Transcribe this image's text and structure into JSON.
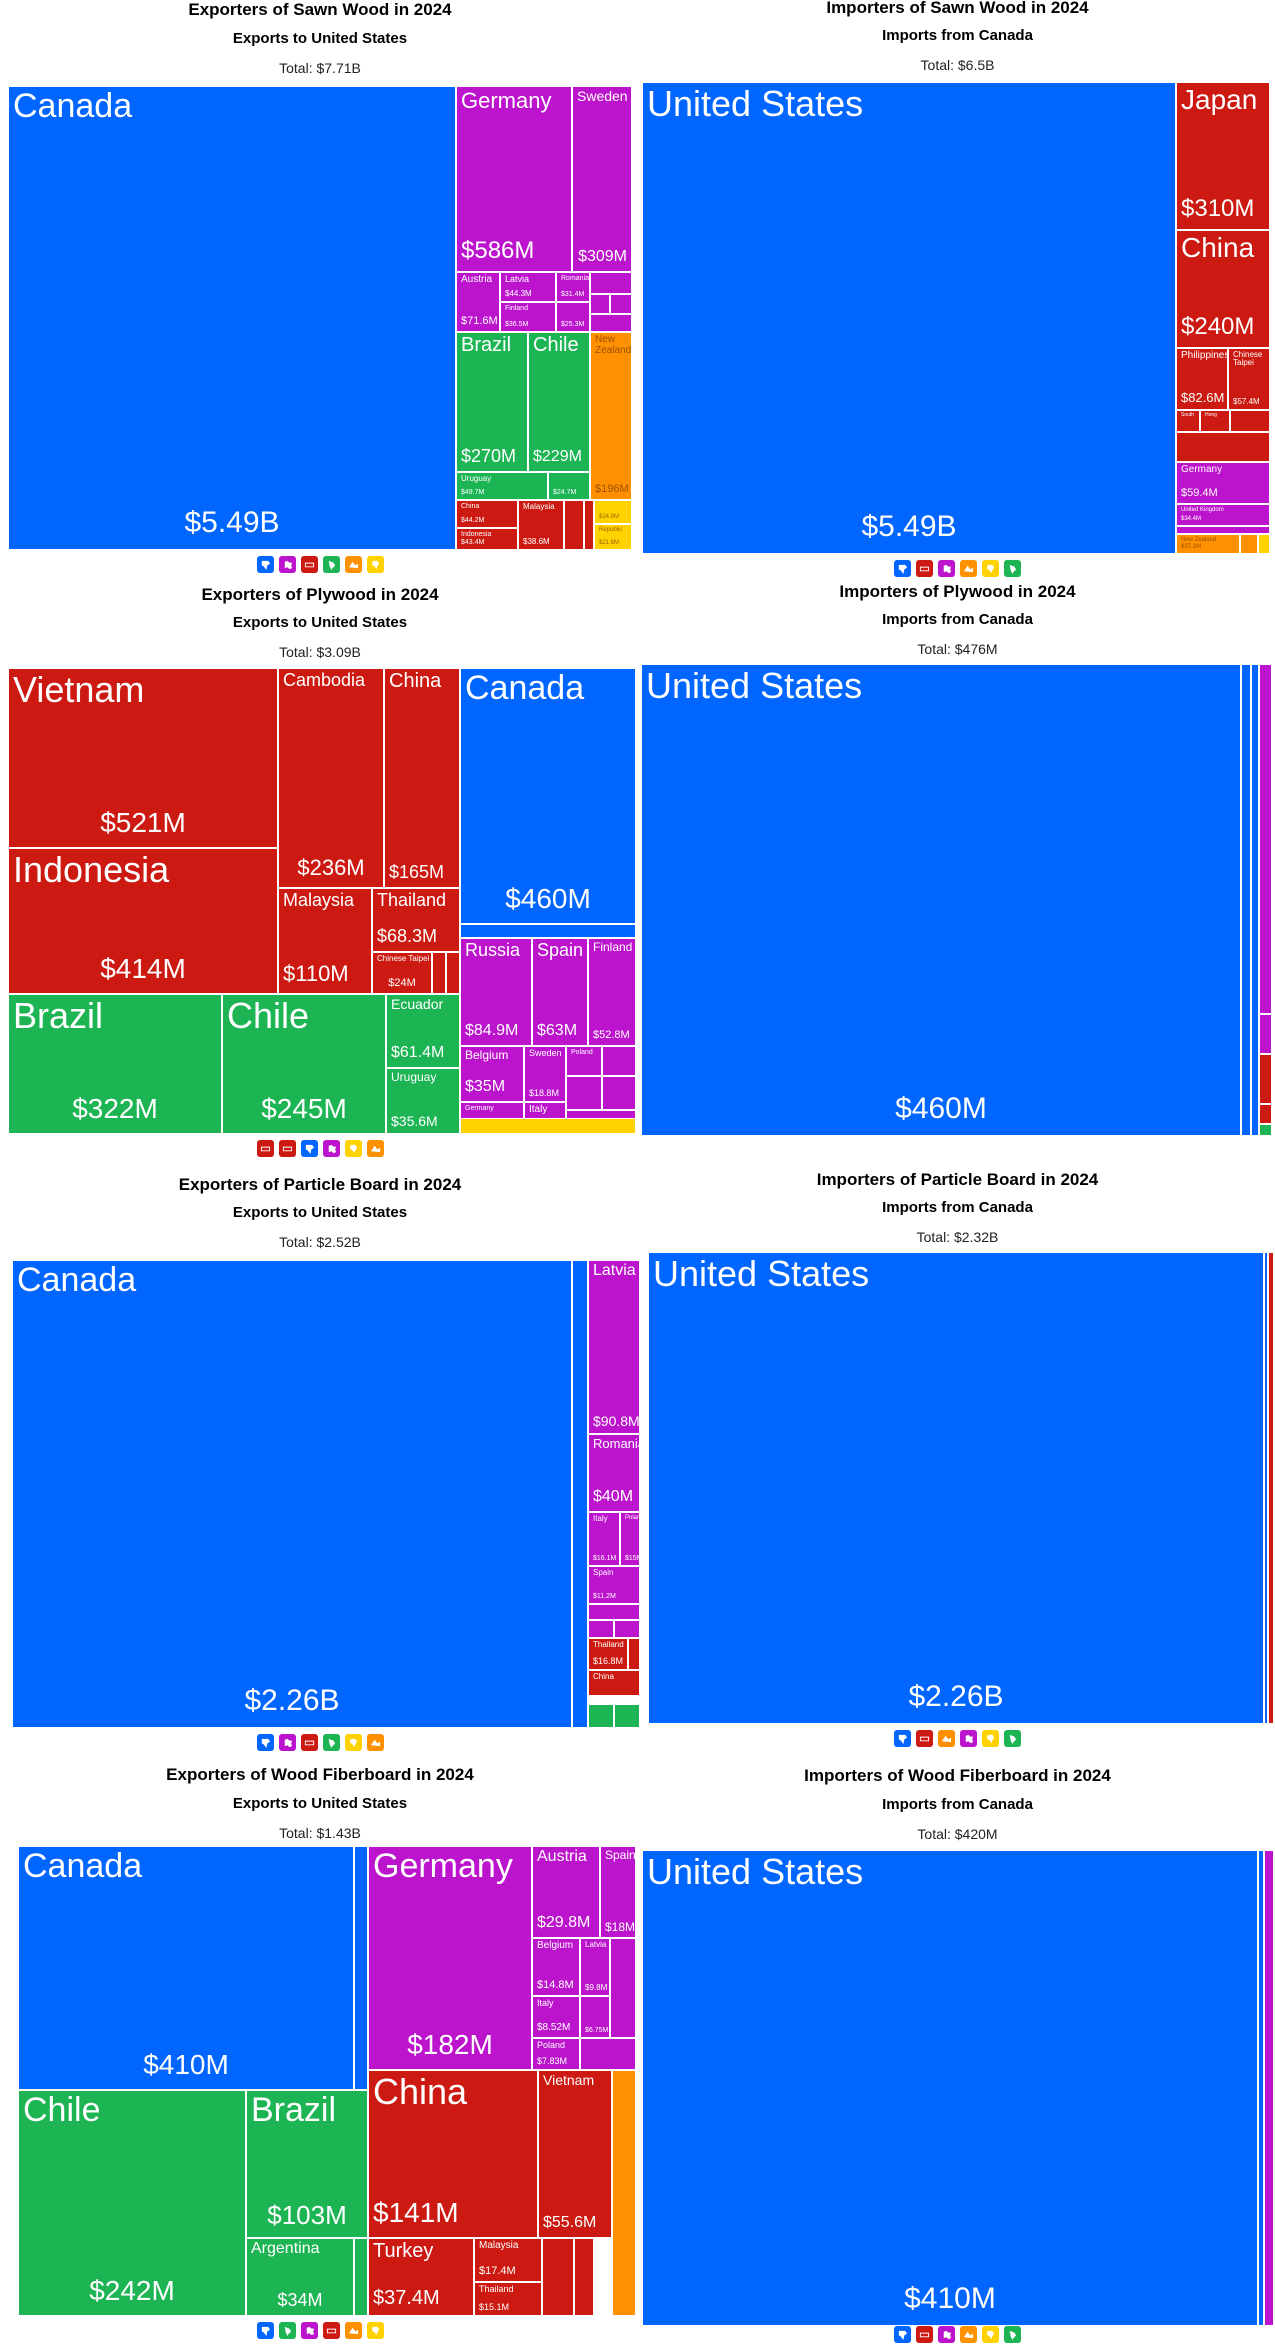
{
  "colors": {
    "north_america": "#0066ff",
    "europe": "#bb14cc",
    "asia": "#cc1a12",
    "south_america": "#1db554",
    "oceania": "#ff9000",
    "africa": "#ffd200"
  },
  "legend_icons": {
    "north_america": "north-america-icon",
    "europe": "europe-icon",
    "asia": "asia-icon",
    "south_america": "south-america-icon",
    "oceania": "oceania-icon",
    "africa": "africa-icon"
  },
  "chart_data": [
    {
      "type": "treemap",
      "title": "Exporters of Sawn Wood in 2024",
      "subtitle": "Exports to United States",
      "total": "Total: $7.71B",
      "legend": [
        "north_america",
        "europe",
        "asia",
        "south_america",
        "oceania",
        "africa"
      ],
      "items": [
        {
          "name": "Canada",
          "value": "$5.49B",
          "region": "north_america"
        },
        {
          "name": "Germany",
          "value": "$586M",
          "region": "europe"
        },
        {
          "name": "Sweden",
          "value": "$309M",
          "region": "europe"
        },
        {
          "name": "Austria",
          "value": "$71.6M",
          "region": "europe"
        },
        {
          "name": "Latvia",
          "value": "$44.3M",
          "region": "europe"
        },
        {
          "name": "Romania",
          "value": "$31.4M",
          "region": "europe"
        },
        {
          "name": "Finland",
          "value": "$36.5M",
          "region": "europe"
        },
        {
          "name": "",
          "value": "$25.3M",
          "region": "europe"
        },
        {
          "name": "Brazil",
          "value": "$270M",
          "region": "south_america"
        },
        {
          "name": "Chile",
          "value": "$229M",
          "region": "south_america"
        },
        {
          "name": "Uruguay",
          "value": "$49.7M",
          "region": "south_america"
        },
        {
          "name": "",
          "value": "$24.7M",
          "region": "south_america"
        },
        {
          "name": "New Zealand",
          "value": "$196M",
          "region": "oceania"
        },
        {
          "name": "China",
          "value": "$44.2M",
          "region": "asia"
        },
        {
          "name": "Malaysia",
          "value": "$38.6M",
          "region": "asia"
        },
        {
          "name": "Indonesia",
          "value": "$43.4M",
          "region": "asia"
        },
        {
          "name": "",
          "value": "$24.8M",
          "region": "africa"
        },
        {
          "name": "Republic",
          "value": "$21.6M",
          "region": "africa"
        }
      ]
    },
    {
      "type": "treemap",
      "title": "Importers of Sawn Wood in 2024",
      "subtitle": "Imports from Canada",
      "total": "Total: $6.5B",
      "legend": [
        "north_america",
        "asia",
        "europe",
        "oceania",
        "africa",
        "south_america"
      ],
      "items": [
        {
          "name": "United States",
          "value": "$5.49B",
          "region": "north_america"
        },
        {
          "name": "Japan",
          "value": "$310M",
          "region": "asia"
        },
        {
          "name": "China",
          "value": "$240M",
          "region": "asia"
        },
        {
          "name": "Philippines",
          "value": "$82.6M",
          "region": "asia"
        },
        {
          "name": "Chinese Taipei",
          "value": "$57.4M",
          "region": "asia"
        },
        {
          "name": "South",
          "value": "",
          "region": "asia"
        },
        {
          "name": "Hong",
          "value": "",
          "region": "asia"
        },
        {
          "name": "Germany",
          "value": "$59.4M",
          "region": "europe"
        },
        {
          "name": "United Kingdom",
          "value": "$34.4M",
          "region": "europe"
        },
        {
          "name": "New Zealand",
          "value": "$37.1M",
          "region": "oceania"
        }
      ]
    },
    {
      "type": "treemap",
      "title": "Exporters of Plywood in 2024",
      "subtitle": "Exports to United States",
      "total": "Total: $3.09B",
      "legend": [
        "asia",
        "asia",
        "north_america",
        "europe",
        "africa",
        "oceania"
      ],
      "items": [
        {
          "name": "Vietnam",
          "value": "$521M",
          "region": "asia"
        },
        {
          "name": "Indonesia",
          "value": "$414M",
          "region": "asia"
        },
        {
          "name": "Cambodia",
          "value": "$236M",
          "region": "asia"
        },
        {
          "name": "China",
          "value": "$165M",
          "region": "asia"
        },
        {
          "name": "Malaysia",
          "value": "$110M",
          "region": "asia"
        },
        {
          "name": "Thailand",
          "value": "$68.3M",
          "region": "asia"
        },
        {
          "name": "Chinese Taipei",
          "value": "$24M",
          "region": "asia"
        },
        {
          "name": "Canada",
          "value": "$460M",
          "region": "north_america"
        },
        {
          "name": "Russia",
          "value": "$84.9M",
          "region": "europe"
        },
        {
          "name": "Spain",
          "value": "$63M",
          "region": "europe"
        },
        {
          "name": "Finland",
          "value": "$52.8M",
          "region": "europe"
        },
        {
          "name": "Belgium",
          "value": "$35M",
          "region": "europe"
        },
        {
          "name": "Sweden",
          "value": "$18.8M",
          "region": "europe"
        },
        {
          "name": "Poland",
          "value": "",
          "region": "europe"
        },
        {
          "name": "Italy",
          "value": "$17.5M",
          "region": "europe"
        },
        {
          "name": "Germany",
          "value": "$19M",
          "region": "europe"
        },
        {
          "name": "Brazil",
          "value": "$322M",
          "region": "south_america"
        },
        {
          "name": "Chile",
          "value": "$245M",
          "region": "south_america"
        },
        {
          "name": "Ecuador",
          "value": "$61.4M",
          "region": "south_america"
        },
        {
          "name": "Uruguay",
          "value": "$35.6M",
          "region": "south_america"
        }
      ]
    },
    {
      "type": "treemap",
      "title": "Importers of Plywood in 2024",
      "subtitle": "Imports from Canada",
      "total": "Total: $476M",
      "legend": [],
      "items": [
        {
          "name": "United States",
          "value": "$460M",
          "region": "north_america"
        }
      ]
    },
    {
      "type": "treemap",
      "title": "Exporters of Particle Board in 2024",
      "subtitle": "Exports to United States",
      "total": "Total: $2.52B",
      "legend": [
        "north_america",
        "europe",
        "asia",
        "south_america",
        "africa",
        "oceania"
      ],
      "items": [
        {
          "name": "Canada",
          "value": "$2.26B",
          "region": "north_america"
        },
        {
          "name": "Latvia",
          "value": "$90.8M",
          "region": "europe"
        },
        {
          "name": "Romania",
          "value": "$40M",
          "region": "europe"
        },
        {
          "name": "Italy",
          "value": "$16.1M",
          "region": "europe"
        },
        {
          "name": "Poland",
          "value": "$15M",
          "region": "europe"
        },
        {
          "name": "Spain",
          "value": "$11.2M",
          "region": "europe"
        },
        {
          "name": "Thailand",
          "value": "$16.8M",
          "region": "asia"
        },
        {
          "name": "China",
          "value": "",
          "region": "asia"
        }
      ]
    },
    {
      "type": "treemap",
      "title": "Importers of Particle Board in 2024",
      "subtitle": "Imports from Canada",
      "total": "Total: $2.32B",
      "legend": [
        "north_america",
        "asia",
        "oceania",
        "europe",
        "africa",
        "south_america"
      ],
      "items": [
        {
          "name": "United States",
          "value": "$2.26B",
          "region": "north_america"
        }
      ]
    },
    {
      "type": "treemap",
      "title": "Exporters of Wood Fiberboard in 2024",
      "subtitle": "Exports to United States",
      "total": "Total: $1.43B",
      "legend": [
        "north_america",
        "south_america",
        "europe",
        "asia",
        "oceania",
        "africa"
      ],
      "items": [
        {
          "name": "Canada",
          "value": "$410M",
          "region": "north_america"
        },
        {
          "name": "Chile",
          "value": "$242M",
          "region": "south_america"
        },
        {
          "name": "Brazil",
          "value": "$103M",
          "region": "south_america"
        },
        {
          "name": "Argentina",
          "value": "$34M",
          "region": "south_america"
        },
        {
          "name": "Germany",
          "value": "$182M",
          "region": "europe"
        },
        {
          "name": "Austria",
          "value": "$29.8M",
          "region": "europe"
        },
        {
          "name": "Spain",
          "value": "$18M",
          "region": "europe"
        },
        {
          "name": "Belgium",
          "value": "$14.8M",
          "region": "europe"
        },
        {
          "name": "Latvia",
          "value": "$9.8M",
          "region": "europe"
        },
        {
          "name": "Italy",
          "value": "$8.52M",
          "region": "europe"
        },
        {
          "name": "",
          "value": "$6.75M",
          "region": "europe"
        },
        {
          "name": "Poland",
          "value": "$7.83M",
          "region": "europe"
        },
        {
          "name": "China",
          "value": "$141M",
          "region": "asia"
        },
        {
          "name": "Vietnam",
          "value": "$55.6M",
          "region": "asia"
        },
        {
          "name": "Turkey",
          "value": "$37.4M",
          "region": "asia"
        },
        {
          "name": "Malaysia",
          "value": "$17.4M",
          "region": "asia"
        },
        {
          "name": "Thailand",
          "value": "$15.1M",
          "region": "asia"
        }
      ]
    },
    {
      "type": "treemap",
      "title": "Importers of Wood Fiberboard in 2024",
      "subtitle": "Imports from Canada",
      "total": "Total: $420M",
      "legend": [
        "north_america",
        "asia",
        "europe",
        "oceania",
        "africa",
        "south_america"
      ],
      "items": [
        {
          "name": "United States",
          "value": "$410M",
          "region": "north_america"
        }
      ]
    }
  ]
}
